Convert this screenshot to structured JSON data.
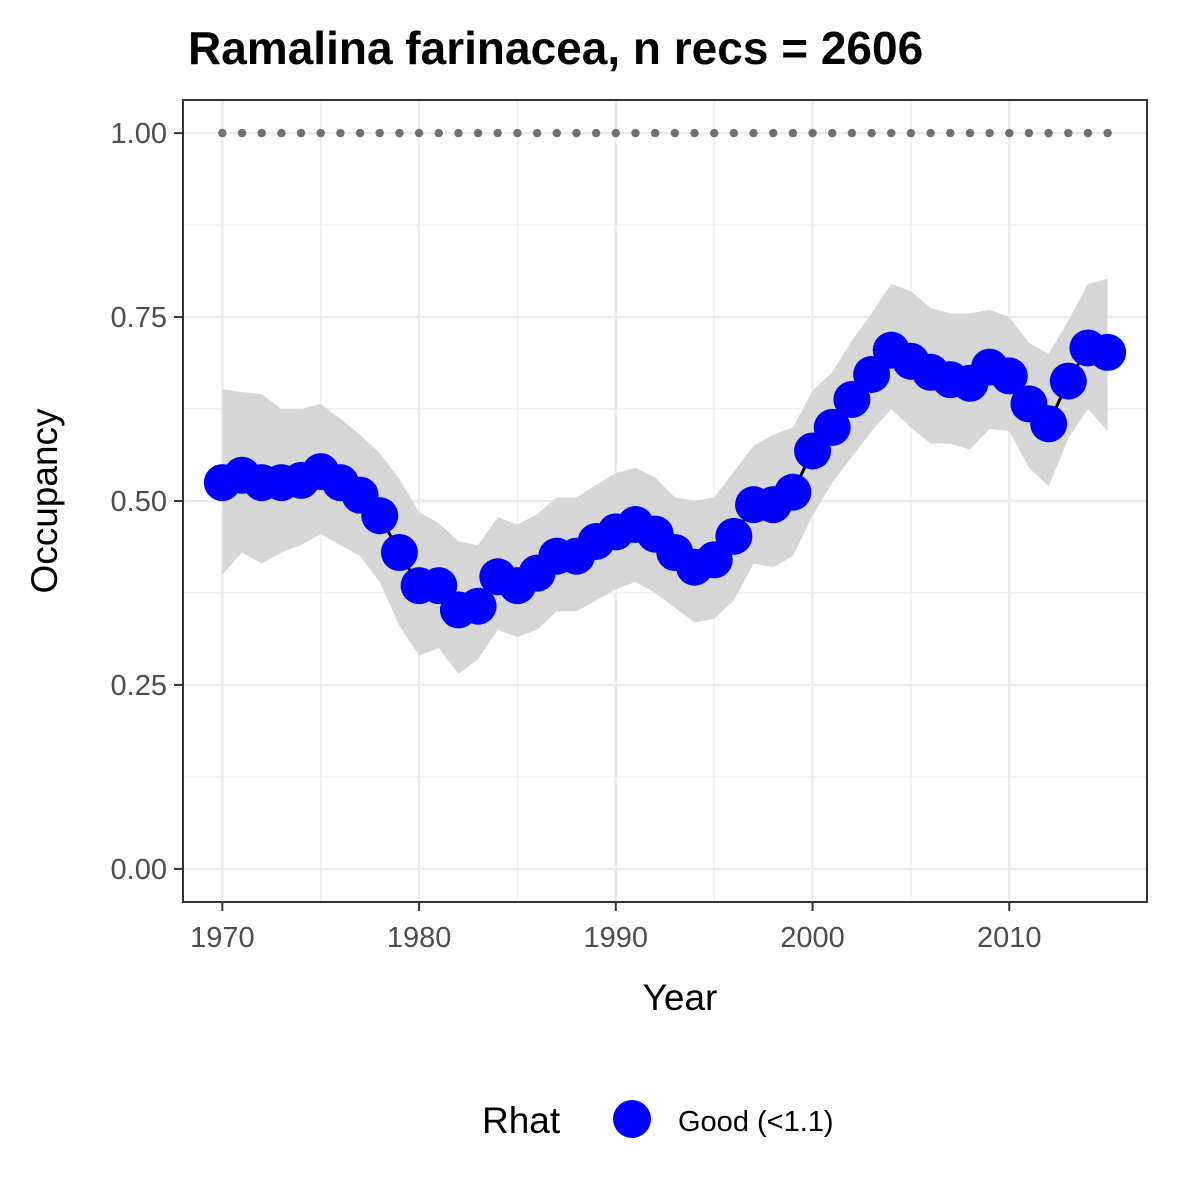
{
  "chart_data": {
    "type": "line",
    "title": "Ramalina farinacea, n recs = 2606",
    "xlabel": "Year",
    "ylabel": "Occupancy",
    "xlim": [
      1968,
      2017
    ],
    "ylim": [
      -0.045,
      1.045
    ],
    "x_ticks": [
      1970,
      1980,
      1990,
      2000,
      2010
    ],
    "y_ticks": [
      0.0,
      0.25,
      0.5,
      0.75,
      1.0
    ],
    "y_tick_labels": [
      "0.00",
      "0.25",
      "0.50",
      "0.75",
      "1.00"
    ],
    "grid": true,
    "colors": {
      "points": "#0000ff",
      "ribbon": "#d6d6d6",
      "line": "#000000",
      "reference_dots": "#707070",
      "grid": "#ebebeb",
      "panel_border": "#333333"
    },
    "legend": {
      "title": "Rhat",
      "placement": "bottom",
      "entries": [
        {
          "label": "Good (<1.1)",
          "color": "#0000ff"
        }
      ]
    },
    "years": [
      1970,
      1971,
      1972,
      1973,
      1974,
      1975,
      1976,
      1977,
      1978,
      1979,
      1980,
      1981,
      1982,
      1983,
      1984,
      1985,
      1986,
      1987,
      1988,
      1989,
      1990,
      1991,
      1992,
      1993,
      1994,
      1995,
      1996,
      1997,
      1998,
      1999,
      2000,
      2001,
      2002,
      2003,
      2004,
      2005,
      2006,
      2007,
      2008,
      2009,
      2010,
      2011,
      2012,
      2013,
      2014,
      2015
    ],
    "series": [
      {
        "name": "Good (<1.1)",
        "occupancy": [
          0.525,
          0.535,
          0.525,
          0.525,
          0.528,
          0.54,
          0.525,
          0.508,
          0.48,
          0.43,
          0.385,
          0.385,
          0.352,
          0.357,
          0.397,
          0.385,
          0.402,
          0.425,
          0.425,
          0.445,
          0.458,
          0.468,
          0.455,
          0.43,
          0.41,
          0.42,
          0.452,
          0.495,
          0.495,
          0.512,
          0.568,
          0.6,
          0.638,
          0.672,
          0.705,
          0.69,
          0.675,
          0.665,
          0.66,
          0.682,
          0.67,
          0.632,
          0.605,
          0.663,
          0.708,
          0.702
        ],
        "lower": [
          0.4,
          0.43,
          0.415,
          0.43,
          0.44,
          0.455,
          0.44,
          0.425,
          0.39,
          0.33,
          0.29,
          0.3,
          0.265,
          0.285,
          0.325,
          0.315,
          0.325,
          0.35,
          0.35,
          0.365,
          0.38,
          0.39,
          0.375,
          0.355,
          0.335,
          0.34,
          0.365,
          0.415,
          0.41,
          0.425,
          0.48,
          0.525,
          0.56,
          0.595,
          0.625,
          0.6,
          0.578,
          0.578,
          0.57,
          0.598,
          0.595,
          0.545,
          0.52,
          0.585,
          0.625,
          0.595
        ],
        "upper": [
          0.652,
          0.648,
          0.645,
          0.625,
          0.625,
          0.632,
          0.612,
          0.59,
          0.565,
          0.53,
          0.485,
          0.47,
          0.445,
          0.44,
          0.478,
          0.468,
          0.482,
          0.505,
          0.505,
          0.522,
          0.538,
          0.545,
          0.532,
          0.505,
          0.5,
          0.505,
          0.54,
          0.575,
          0.59,
          0.6,
          0.65,
          0.675,
          0.718,
          0.755,
          0.795,
          0.785,
          0.762,
          0.755,
          0.755,
          0.76,
          0.75,
          0.715,
          0.7,
          0.745,
          0.795,
          0.802
        ]
      }
    ],
    "reference_line": {
      "y": 1.0,
      "style": "dotted",
      "x_range": [
        1970,
        2015
      ]
    }
  }
}
